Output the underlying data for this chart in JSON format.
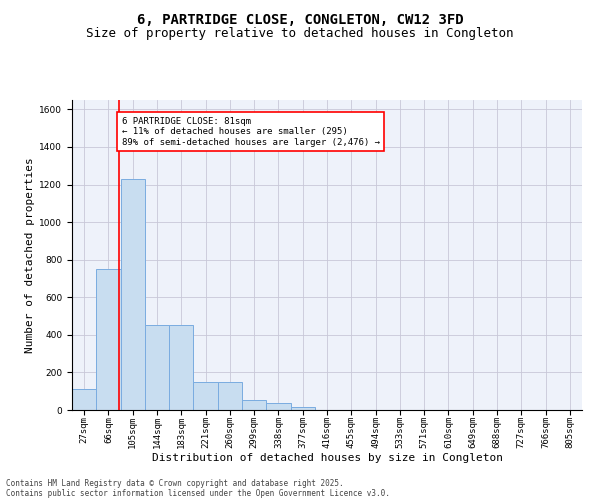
{
  "title_line1": "6, PARTRIDGE CLOSE, CONGLETON, CW12 3FD",
  "title_line2": "Size of property relative to detached houses in Congleton",
  "xlabel": "Distribution of detached houses by size in Congleton",
  "ylabel": "Number of detached properties",
  "categories": [
    "27sqm",
    "66sqm",
    "105sqm",
    "144sqm",
    "183sqm",
    "221sqm",
    "260sqm",
    "299sqm",
    "338sqm",
    "377sqm",
    "416sqm",
    "455sqm",
    "494sqm",
    "533sqm",
    "571sqm",
    "610sqm",
    "649sqm",
    "688sqm",
    "727sqm",
    "766sqm",
    "805sqm"
  ],
  "values": [
    110,
    750,
    1230,
    450,
    450,
    150,
    150,
    55,
    35,
    15,
    0,
    0,
    0,
    0,
    0,
    0,
    0,
    0,
    0,
    0,
    0
  ],
  "bar_color": "#c8ddf0",
  "bar_edge_color": "#7aace0",
  "vline_color": "red",
  "vline_x_idx": 1.45,
  "ylim": [
    0,
    1650
  ],
  "yticks": [
    0,
    200,
    400,
    600,
    800,
    1000,
    1200,
    1400,
    1600
  ],
  "grid_color": "#c8c8d8",
  "background_color": "#eef2fa",
  "annotation_text": "6 PARTRIDGE CLOSE: 81sqm\n← 11% of detached houses are smaller (295)\n89% of semi-detached houses are larger (2,476) →",
  "annotation_box_facecolor": "white",
  "annotation_box_edgecolor": "red",
  "footer_line1": "Contains HM Land Registry data © Crown copyright and database right 2025.",
  "footer_line2": "Contains public sector information licensed under the Open Government Licence v3.0.",
  "title_fontsize": 10,
  "subtitle_fontsize": 9,
  "axis_label_fontsize": 8,
  "tick_fontsize": 6.5,
  "annotation_fontsize": 6.5,
  "footer_fontsize": 5.5
}
